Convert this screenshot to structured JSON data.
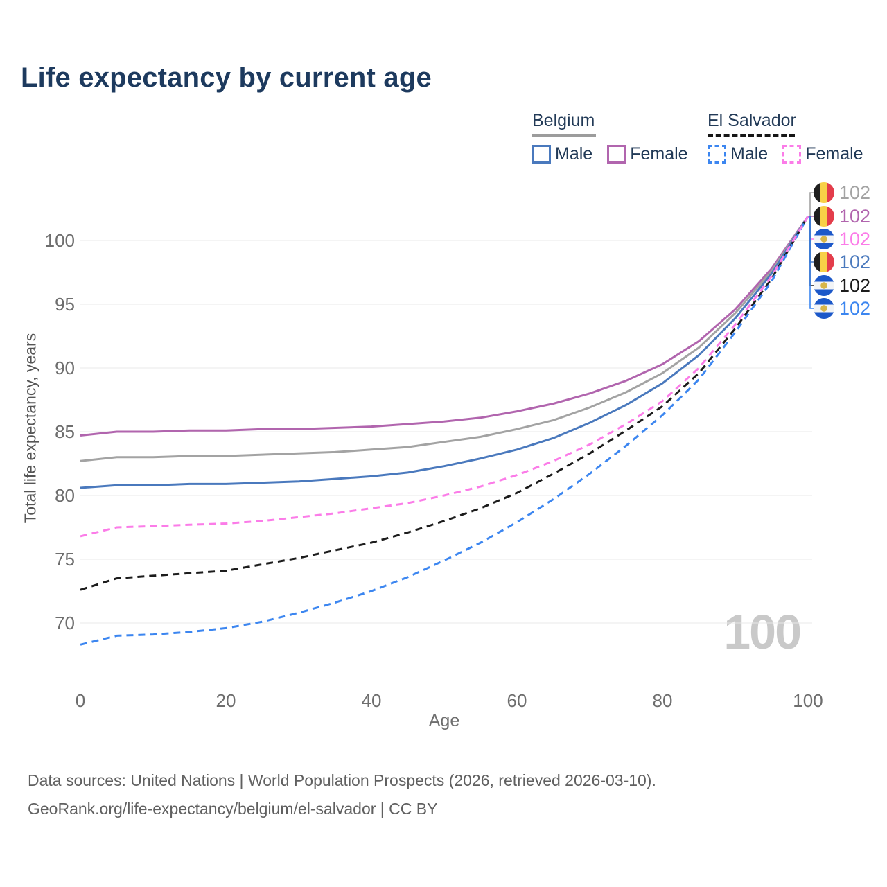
{
  "page": {
    "title": "Life expectancy by current age"
  },
  "legend": {
    "groups": [
      {
        "country": "Belgium",
        "line_style": "solid",
        "line_color": "#9c9c9c",
        "items": [
          {
            "label": "Male",
            "color": "#4a79bd",
            "style": "solid"
          },
          {
            "label": "Female",
            "color": "#b165ae",
            "style": "solid"
          }
        ]
      },
      {
        "country": "El Salvador",
        "line_style": "dashed",
        "line_color": "#161616",
        "items": [
          {
            "label": "Male",
            "color": "#3c86f0",
            "style": "dashed"
          },
          {
            "label": "Female",
            "color": "#fb7ce8",
            "style": "dashed"
          }
        ]
      }
    ]
  },
  "chart_data": {
    "type": "line",
    "title": "Life expectancy by current age",
    "xlabel": "Age",
    "ylabel": "Total life expectancy, years",
    "xlim": [
      0,
      100
    ],
    "ylim": [
      67,
      103
    ],
    "xticks": [
      0,
      20,
      40,
      60,
      80,
      100
    ],
    "yticks": [
      70,
      75,
      80,
      85,
      90,
      95,
      100
    ],
    "grid": "horizontal",
    "legend_position": "top-right",
    "watermark": "100",
    "x": [
      0,
      5,
      10,
      15,
      20,
      25,
      30,
      35,
      40,
      45,
      50,
      55,
      60,
      65,
      70,
      75,
      80,
      85,
      90,
      95,
      100
    ],
    "series": [
      {
        "id": "belgium-female",
        "name": "Belgium Female",
        "country": "Belgium",
        "sex": "Female",
        "color": "#b165ae",
        "dash": "solid",
        "end_label": "102",
        "values": [
          84.7,
          85.0,
          85.0,
          85.1,
          85.1,
          85.2,
          85.2,
          85.3,
          85.4,
          85.6,
          85.8,
          86.1,
          86.6,
          87.2,
          88.0,
          89.0,
          90.3,
          92.1,
          94.6,
          97.8,
          101.9
        ]
      },
      {
        "id": "belgium-all",
        "name": "Belgium (both sexes)",
        "country": "Belgium",
        "sex": "All",
        "color": "#a3a3a3",
        "dash": "solid",
        "end_label": "102",
        "values": [
          82.7,
          83.0,
          83.0,
          83.1,
          83.1,
          83.2,
          83.3,
          83.4,
          83.6,
          83.8,
          84.2,
          84.6,
          85.2,
          85.9,
          86.9,
          88.1,
          89.6,
          91.6,
          94.3,
          97.6,
          101.9
        ]
      },
      {
        "id": "belgium-male",
        "name": "Belgium Male",
        "country": "Belgium",
        "sex": "Male",
        "color": "#4a79bd",
        "dash": "solid",
        "end_label": "102",
        "values": [
          80.6,
          80.8,
          80.8,
          80.9,
          80.9,
          81.0,
          81.1,
          81.3,
          81.5,
          81.8,
          82.3,
          82.9,
          83.6,
          84.5,
          85.7,
          87.1,
          88.8,
          91.0,
          93.9,
          97.4,
          101.9
        ]
      },
      {
        "id": "el-salvador-all",
        "name": "El Salvador (both sexes)",
        "country": "El Salvador",
        "sex": "All",
        "color": "#1c1c1c",
        "dash": "dashed",
        "end_label": "102",
        "values": [
          72.6,
          73.5,
          73.7,
          73.9,
          74.1,
          74.6,
          75.1,
          75.7,
          76.3,
          77.1,
          78.0,
          79.0,
          80.2,
          81.7,
          83.3,
          85.1,
          87.0,
          89.6,
          93.1,
          97.0,
          101.9
        ]
      },
      {
        "id": "el-salvador-male",
        "name": "El Salvador Male",
        "country": "El Salvador",
        "sex": "Male",
        "color": "#3c86f0",
        "dash": "dashed",
        "end_label": "102",
        "values": [
          68.3,
          69.0,
          69.1,
          69.3,
          69.6,
          70.1,
          70.8,
          71.6,
          72.5,
          73.6,
          74.9,
          76.3,
          77.9,
          79.7,
          81.7,
          83.9,
          86.3,
          89.1,
          92.8,
          96.8,
          101.9
        ]
      },
      {
        "id": "el-salvador-female",
        "name": "El Salvador Female",
        "country": "El Salvador",
        "sex": "Female",
        "color": "#fb7ce8",
        "dash": "dashed",
        "end_label": "102",
        "values": [
          76.8,
          77.5,
          77.6,
          77.7,
          77.8,
          78.0,
          78.3,
          78.6,
          79.0,
          79.4,
          80.0,
          80.7,
          81.6,
          82.7,
          84.0,
          85.6,
          87.4,
          90.0,
          93.4,
          97.2,
          101.9
        ]
      }
    ]
  },
  "right_labels": {
    "rows": [
      {
        "flag": "belgium",
        "value": "102",
        "color": "#a3a3a3"
      },
      {
        "flag": "belgium",
        "value": "102",
        "color": "#b165ae"
      },
      {
        "flag": "el-salvador",
        "value": "102",
        "color": "#fb7ce8"
      },
      {
        "flag": "belgium",
        "value": "102",
        "color": "#4a79bd"
      },
      {
        "flag": "el-salvador",
        "value": "102",
        "color": "#1c1c1c"
      },
      {
        "flag": "el-salvador",
        "value": "102",
        "color": "#3c86f0"
      }
    ]
  },
  "footer": {
    "line1": "Data sources: United Nations | World Population Prospects (2026, retrieved 2026-03-10).",
    "line2": "GeoRank.org/life-expectancy/belgium/el-salvador | CC BY"
  }
}
